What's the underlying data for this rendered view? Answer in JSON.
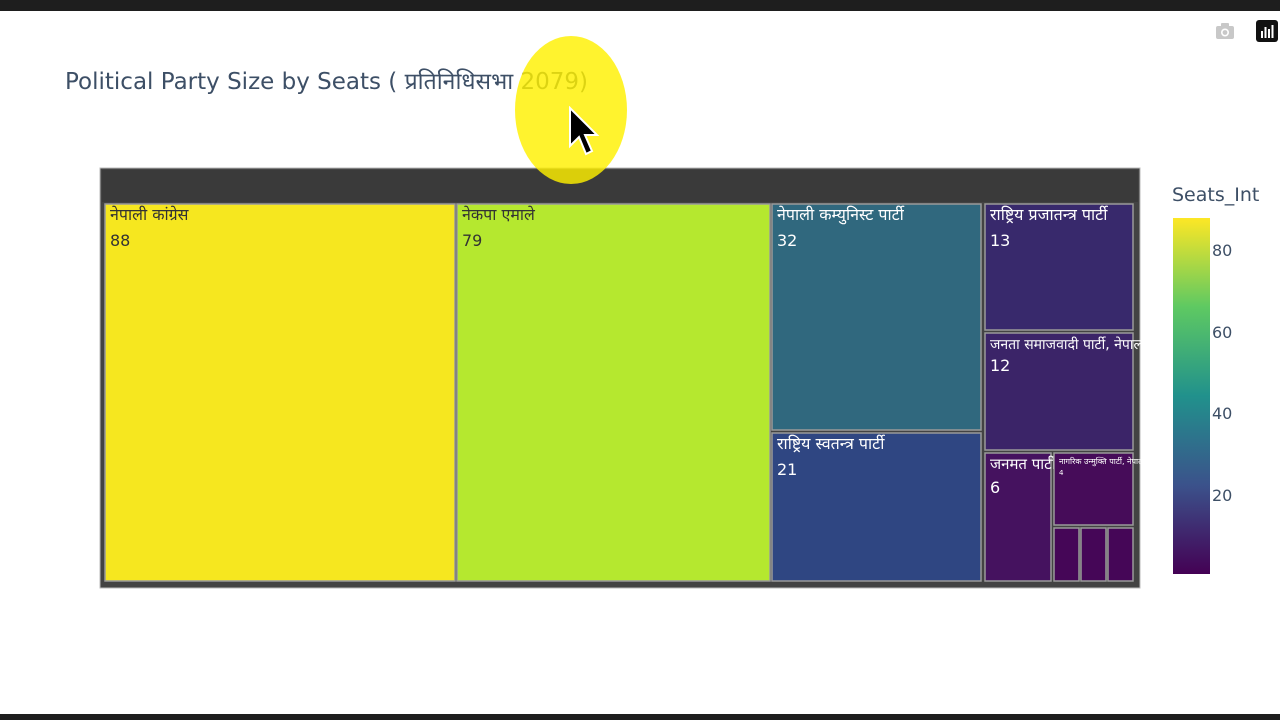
{
  "chart_data": {
    "type": "treemap",
    "title": "Political Party Size by Seats ( प्रतिनिधिसभा 2079)",
    "values_label": "Seats_Int",
    "items": [
      {
        "label": "नेपाली कांग्रेस",
        "value": 88,
        "color": "#f6e71f"
      },
      {
        "label": "नेकपा एमाले",
        "value": 79,
        "color": "#b5e82f"
      },
      {
        "label": "नेपाली कम्युनिस्ट पार्टी",
        "value": 32,
        "color": "#30687e"
      },
      {
        "label": "राष्ट्रिय स्वतन्त्र पार्टी",
        "value": 21,
        "color": "#2f4682"
      },
      {
        "label": "राष्ट्रिय प्रजातन्त्र पार्टी",
        "value": 13,
        "color": "#38296c"
      },
      {
        "label": "जनता समाजवादी पार्टी, नेपाल",
        "value": 12,
        "color": "#3b2468"
      },
      {
        "label": "जनमत पार्टी",
        "value": 6,
        "color": "#45125f"
      },
      {
        "label": "नागरिक उन्मुक्ति पार्टी, नेपाल",
        "value": 4,
        "color": "#460c59"
      },
      {
        "label": "",
        "value": 1,
        "color": "#450657"
      },
      {
        "label": "",
        "value": 1,
        "color": "#450657"
      },
      {
        "label": "",
        "value": 1,
        "color": "#450657"
      }
    ],
    "colorbar": {
      "title": "Seats_Int",
      "ticks": [
        20,
        40,
        60,
        80
      ],
      "range": [
        1,
        88
      ],
      "colorscale": [
        "#440154",
        "#3b528b",
        "#21918c",
        "#5ec962",
        "#fde725"
      ]
    }
  },
  "toolbar": {
    "icons": [
      "camera-icon",
      "plotly-logo-icon"
    ]
  },
  "overlay": {
    "cursor": "cursor-icon",
    "highlight_color": "#fff000"
  }
}
